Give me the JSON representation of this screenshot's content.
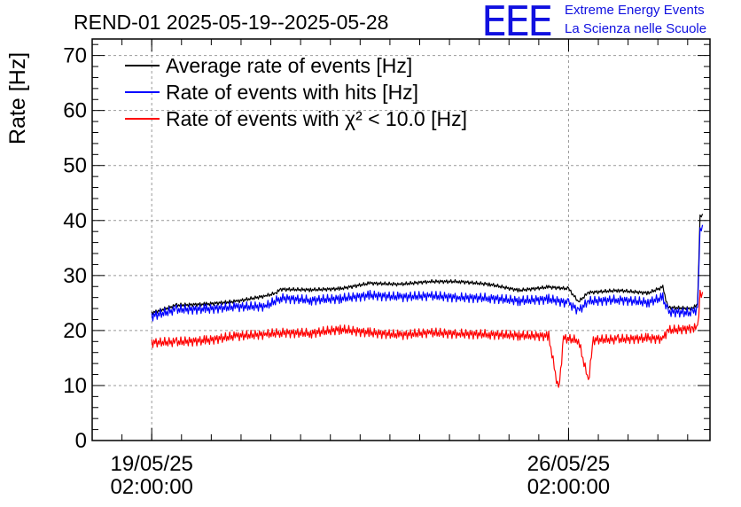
{
  "logo": {
    "letters": "EEE",
    "line1": "Extreme Energy Events",
    "line2": "La Scienza nelle Scuole"
  },
  "chart_data": {
    "type": "line",
    "title": "REND-01 2025-05-19--2025-05-28",
    "ylabel": "Rate [Hz]",
    "xlabel": "",
    "ylim": [
      0,
      73
    ],
    "yticks": [
      0,
      10,
      20,
      30,
      40,
      50,
      60,
      70
    ],
    "xlim": [
      "2025-05-18 02:00:00",
      "2025-05-28 11:00:00"
    ],
    "xticks": [
      {
        "x": "2025-05-19 02:00:00",
        "line1": "19/05/25",
        "line2": "02:00:00"
      },
      {
        "x": "2025-05-26 02:00:00",
        "line1": "26/05/25",
        "line2": "02:00:00"
      }
    ],
    "grid": true,
    "legend_position": "top-left",
    "series": [
      {
        "name": "Average rate of events [Hz]",
        "color": "#000000",
        "points": [
          [
            "2025-05-19 02:00",
            23.2
          ],
          [
            "2025-05-19 12:00",
            24.6
          ],
          [
            "2025-05-20 00:00",
            24.8
          ],
          [
            "2025-05-20 12:00",
            25.3
          ],
          [
            "2025-05-21 00:00",
            26.3
          ],
          [
            "2025-05-21 04:00",
            26.8
          ],
          [
            "2025-05-21 06:00",
            27.5
          ],
          [
            "2025-05-21 18:00",
            27.4
          ],
          [
            "2025-05-22 06:00",
            27.6
          ],
          [
            "2025-05-22 18:00",
            28.6
          ],
          [
            "2025-05-23 06:00",
            28.4
          ],
          [
            "2025-05-23 18:00",
            28.9
          ],
          [
            "2025-05-24 06:00",
            28.9
          ],
          [
            "2025-05-24 18:00",
            28.4
          ],
          [
            "2025-05-25 06:00",
            27.3
          ],
          [
            "2025-05-25 18:00",
            27.9
          ],
          [
            "2025-05-26 02:00",
            27.6
          ],
          [
            "2025-05-26 06:00",
            25.2
          ],
          [
            "2025-05-26 10:00",
            26.9
          ],
          [
            "2025-05-26 22:00",
            27.3
          ],
          [
            "2025-05-27 10:00",
            26.8
          ],
          [
            "2025-05-27 16:00",
            27.9
          ],
          [
            "2025-05-27 18:00",
            24.2
          ],
          [
            "2025-05-28 04:00",
            24.0
          ],
          [
            "2025-05-28 06:00",
            24.8
          ],
          [
            "2025-05-28 07:00",
            40.8
          ],
          [
            "2025-05-28 08:00",
            41.2
          ]
        ]
      },
      {
        "name": "Rate of events with hits [Hz]",
        "color": "#0000ff",
        "points": [
          [
            "2025-05-19 02:00",
            22.6
          ],
          [
            "2025-05-19 12:00",
            23.8
          ],
          [
            "2025-05-20 00:00",
            23.9
          ],
          [
            "2025-05-20 12:00",
            24.3
          ],
          [
            "2025-05-21 00:00",
            24.4
          ],
          [
            "2025-05-21 06:00",
            25.9
          ],
          [
            "2025-05-21 18:00",
            25.5
          ],
          [
            "2025-05-22 06:00",
            25.8
          ],
          [
            "2025-05-22 18:00",
            26.4
          ],
          [
            "2025-05-23 06:00",
            26.1
          ],
          [
            "2025-05-23 18:00",
            26.3
          ],
          [
            "2025-05-24 06:00",
            26.0
          ],
          [
            "2025-05-24 18:00",
            25.9
          ],
          [
            "2025-05-25 06:00",
            25.4
          ],
          [
            "2025-05-25 18:00",
            25.7
          ],
          [
            "2025-05-26 02:00",
            25.0
          ],
          [
            "2025-05-26 06:00",
            23.6
          ],
          [
            "2025-05-26 10:00",
            25.3
          ],
          [
            "2025-05-26 22:00",
            25.6
          ],
          [
            "2025-05-27 10:00",
            25.1
          ],
          [
            "2025-05-27 16:00",
            26.0
          ],
          [
            "2025-05-27 18:00",
            23.4
          ],
          [
            "2025-05-28 04:00",
            23.2
          ],
          [
            "2025-05-28 06:00",
            24.0
          ],
          [
            "2025-05-28 07:00",
            38.5
          ],
          [
            "2025-05-28 08:00",
            39.2
          ]
        ]
      },
      {
        "name": "Rate of events with χ² < 10.0 [Hz]",
        "color": "#ff0000",
        "points": [
          [
            "2025-05-19 02:00",
            17.8
          ],
          [
            "2025-05-19 12:00",
            17.9
          ],
          [
            "2025-05-20 00:00",
            18.2
          ],
          [
            "2025-05-20 12:00",
            19.0
          ],
          [
            "2025-05-21 00:00",
            19.3
          ],
          [
            "2025-05-21 06:00",
            19.6
          ],
          [
            "2025-05-21 18:00",
            19.5
          ],
          [
            "2025-05-22 06:00",
            20.2
          ],
          [
            "2025-05-22 18:00",
            19.6
          ],
          [
            "2025-05-23 06:00",
            19.2
          ],
          [
            "2025-05-23 18:00",
            19.6
          ],
          [
            "2025-05-24 06:00",
            19.4
          ],
          [
            "2025-05-24 18:00",
            19.3
          ],
          [
            "2025-05-25 06:00",
            19.1
          ],
          [
            "2025-05-25 18:00",
            19.0
          ],
          [
            "2025-05-25 22:00",
            8.9
          ],
          [
            "2025-05-26 00:00",
            18.6
          ],
          [
            "2025-05-26 06:00",
            18.2
          ],
          [
            "2025-05-26 10:00",
            10.8
          ],
          [
            "2025-05-26 12:00",
            18.3
          ],
          [
            "2025-05-26 22:00",
            18.4
          ],
          [
            "2025-05-27 10:00",
            18.6
          ],
          [
            "2025-05-27 16:00",
            18.5
          ],
          [
            "2025-05-27 18:00",
            20.0
          ],
          [
            "2025-05-28 04:00",
            20.4
          ],
          [
            "2025-05-28 06:00",
            20.5
          ],
          [
            "2025-05-28 07:00",
            26.5
          ],
          [
            "2025-05-28 08:00",
            27.0
          ]
        ]
      }
    ]
  }
}
